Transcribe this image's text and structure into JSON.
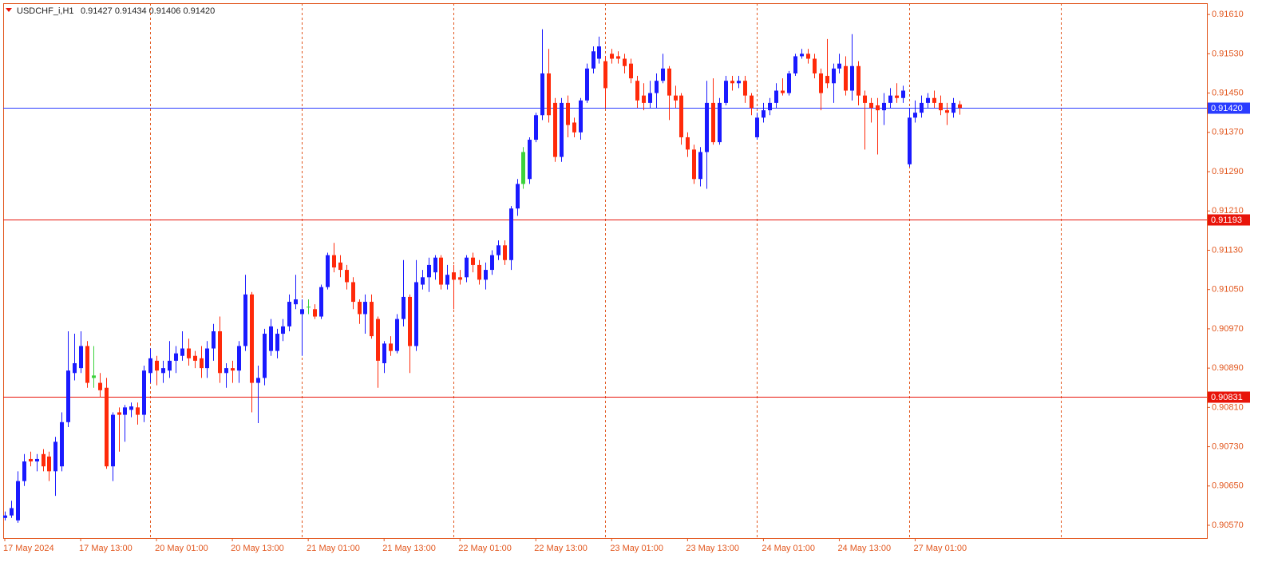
{
  "chart_data": {
    "type": "candlestick",
    "title": "USDCHF_i,H1",
    "subtitle": "0.91427 0.91434 0.91406 0.91420",
    "up_color": "#1a1aff",
    "down_color": "#ff2a0a",
    "special_color": "#3cd23c",
    "special_indices": [
      14,
      48,
      82
    ],
    "categories": [
      "17 May 2024",
      null,
      null,
      null,
      null,
      null,
      null,
      null,
      null,
      null,
      null,
      null,
      "17 May 13:00",
      null,
      null,
      null,
      null,
      null,
      null,
      null,
      null,
      null,
      null,
      null,
      "20 May 01:00",
      null,
      null,
      null,
      null,
      null,
      null,
      null,
      null,
      null,
      null,
      null,
      "20 May 13:00",
      null,
      null,
      null,
      null,
      null,
      null,
      null,
      null,
      null,
      null,
      null,
      "21 May 01:00",
      null,
      null,
      null,
      null,
      null,
      null,
      null,
      null,
      null,
      null,
      null,
      "21 May 13:00",
      null,
      null,
      null,
      null,
      null,
      null,
      null,
      null,
      null,
      null,
      null,
      "22 May 01:00",
      null,
      null,
      null,
      null,
      null,
      null,
      null,
      null,
      null,
      null,
      null,
      "22 May 13:00",
      null,
      null,
      null,
      null,
      null,
      null,
      null,
      null,
      null,
      null,
      null,
      "23 May 01:00",
      null,
      null,
      null,
      null,
      null,
      null,
      null,
      null,
      null,
      null,
      null,
      "23 May 13:00",
      null,
      null,
      null,
      null,
      null,
      null,
      null,
      null,
      null,
      null,
      null,
      "24 May 01:00",
      null,
      null,
      null,
      null,
      null,
      null,
      null,
      null,
      null,
      null,
      null,
      "24 May 13:00",
      null,
      null,
      null,
      null,
      null,
      null,
      null,
      null,
      null,
      null,
      null,
      "27 May 01:00",
      null,
      null,
      null,
      null,
      null,
      null,
      null
    ],
    "open": [
      0.90585,
      0.9059,
      0.9058,
      0.9066,
      0.90705,
      0.907,
      0.90715,
      0.9071,
      0.9068,
      0.9069,
      0.9078,
      0.9088,
      0.9089,
      0.90935,
      0.9087,
      0.9086,
      0.9085,
      0.9069,
      0.908,
      0.90795,
      0.90805,
      0.9081,
      0.90795,
      0.9088,
      0.90905,
      0.9088,
      0.90885,
      0.90905,
      0.90915,
      0.9093,
      0.90915,
      0.9091,
      0.9089,
      0.9093,
      0.90965,
      0.9088,
      0.9089,
      0.90885,
      0.90935,
      0.9104,
      0.9086,
      0.9087,
      0.90925,
      0.90925,
      0.9096,
      0.90975,
      0.9102,
      0.91,
      0.91015,
      0.9101,
      0.90995,
      0.91055,
      0.9112,
      0.91105,
      0.9109,
      0.91065,
      0.91025,
      0.91,
      0.91025,
      0.9099,
      0.909,
      0.9094,
      0.90925,
      0.9099,
      0.91035,
      0.90935,
      0.9106,
      0.91075,
      0.91085,
      0.91115,
      0.9106,
      0.91085,
      0.91075,
      0.91075,
      0.91115,
      0.911,
      0.9107,
      0.9109,
      0.9112,
      0.9114,
      0.9111,
      0.91215,
      0.91265,
      0.91275,
      0.91355,
      0.91405,
      0.9149,
      0.9143,
      0.9132,
      0.9143,
      0.9139,
      0.9137,
      0.91435,
      0.915,
      0.9152,
      0.91515,
      0.9153,
      0.91525,
      0.9152,
      0.9151,
      0.91475,
      0.91445,
      0.9143,
      0.9145,
      0.91475,
      0.915,
      0.91445,
      0.91445,
      0.9136,
      0.91335,
      0.91275,
      0.9133,
      0.9143,
      0.9135,
      0.9143,
      0.91475,
      0.9147,
      0.91475,
      0.91445,
      0.9136,
      0.914,
      0.91415,
      0.9143,
      0.91455,
      0.9145,
      0.9149,
      0.91525,
      0.9153,
      0.9152,
      0.9149,
      0.91485,
      0.9147,
      0.915,
      0.91505,
      0.91455,
      0.91505,
      0.91445,
      0.9143,
      0.91425,
      0.91415,
      0.9143,
      0.91445,
      0.9144,
      0.91305,
      0.914,
      0.9141,
      0.9143,
      0.9144,
      0.9143,
      0.91415,
      0.9141,
      0.91427
    ],
    "high": [
      0.90598,
      0.9062,
      0.9068,
      0.90715,
      0.9072,
      0.90715,
      0.90725,
      0.9072,
      0.9075,
      0.908,
      0.90965,
      0.9096,
      0.90965,
      0.90945,
      0.90935,
      0.9088,
      0.9087,
      0.908,
      0.9081,
      0.90815,
      0.9082,
      0.9082,
      0.90895,
      0.9093,
      0.90915,
      0.90905,
      0.90945,
      0.90935,
      0.90965,
      0.9095,
      0.90925,
      0.90935,
      0.90945,
      0.9098,
      0.90995,
      0.909,
      0.90905,
      0.90945,
      0.9108,
      0.91045,
      0.90895,
      0.9097,
      0.9099,
      0.9097,
      0.9099,
      0.9104,
      0.9108,
      0.9103,
      0.9103,
      0.9102,
      0.9106,
      0.91125,
      0.91145,
      0.9112,
      0.911,
      0.91075,
      0.9103,
      0.9104,
      0.9104,
      0.90995,
      0.90945,
      0.90955,
      0.91,
      0.9111,
      0.9104,
      0.9111,
      0.9109,
      0.91115,
      0.9112,
      0.9112,
      0.911,
      0.911,
      0.9109,
      0.9112,
      0.91125,
      0.9111,
      0.91105,
      0.9113,
      0.9115,
      0.9115,
      0.9122,
      0.91275,
      0.9134,
      0.9136,
      0.9141,
      0.9158,
      0.9154,
      0.9144,
      0.9144,
      0.91445,
      0.914,
      0.9144,
      0.9151,
      0.91545,
      0.91565,
      0.91525,
      0.9154,
      0.91535,
      0.9153,
      0.9152,
      0.91485,
      0.9147,
      0.91475,
      0.9149,
      0.9153,
      0.91505,
      0.91465,
      0.9145,
      0.9137,
      0.91345,
      0.9134,
      0.91475,
      0.9148,
      0.9144,
      0.91485,
      0.91485,
      0.91485,
      0.91485,
      0.9145,
      0.9141,
      0.9143,
      0.9144,
      0.9147,
      0.9148,
      0.91495,
      0.9153,
      0.9154,
      0.9154,
      0.9153,
      0.915,
      0.9156,
      0.9151,
      0.9153,
      0.91525,
      0.9157,
      0.91515,
      0.91455,
      0.9144,
      0.9144,
      0.9145,
      0.9146,
      0.9147,
      0.91465,
      0.9142,
      0.91435,
      0.91445,
      0.9145,
      0.91455,
      0.91445,
      0.9143,
      0.9144,
      0.91434
    ],
    "low": [
      0.9058,
      0.90585,
      0.90575,
      0.9065,
      0.9069,
      0.9068,
      0.9068,
      0.9066,
      0.9063,
      0.9068,
      0.9077,
      0.90865,
      0.9088,
      0.9085,
      0.9085,
      0.9083,
      0.90685,
      0.9066,
      0.9072,
      0.9074,
      0.9079,
      0.90775,
      0.9078,
      0.9086,
      0.90855,
      0.9086,
      0.9087,
      0.9088,
      0.90905,
      0.90895,
      0.9089,
      0.9087,
      0.9087,
      0.90905,
      0.9086,
      0.9085,
      0.9086,
      0.9086,
      0.90925,
      0.908,
      0.90778,
      0.90855,
      0.90915,
      0.9091,
      0.90945,
      0.90965,
      0.9101,
      0.90915,
      0.91,
      0.9099,
      0.9099,
      0.9105,
      0.91085,
      0.91075,
      0.9105,
      0.9101,
      0.9098,
      0.9096,
      0.9095,
      0.9085,
      0.9088,
      0.90915,
      0.9092,
      0.90975,
      0.9088,
      0.90925,
      0.9105,
      0.91045,
      0.9107,
      0.9105,
      0.9105,
      0.9101,
      0.9106,
      0.91065,
      0.91085,
      0.9106,
      0.9105,
      0.9108,
      0.9111,
      0.911,
      0.9109,
      0.912,
      0.91255,
      0.91265,
      0.9135,
      0.91395,
      0.9139,
      0.9131,
      0.9131,
      0.9136,
      0.9136,
      0.91355,
      0.9143,
      0.9149,
      0.9151,
      0.9142,
      0.9151,
      0.9151,
      0.9149,
      0.9147,
      0.9142,
      0.91415,
      0.9142,
      0.9142,
      0.9147,
      0.91395,
      0.9142,
      0.91345,
      0.9132,
      0.91265,
      0.9126,
      0.91255,
      0.91345,
      0.91345,
      0.91425,
      0.91455,
      0.9146,
      0.9143,
      0.91405,
      0.91355,
      0.9139,
      0.91405,
      0.9142,
      0.91445,
      0.91445,
      0.91485,
      0.9152,
      0.9151,
      0.9148,
      0.91415,
      0.9146,
      0.9143,
      0.9149,
      0.91445,
      0.91435,
      0.91425,
      0.91335,
      0.9139,
      0.91325,
      0.91385,
      0.9142,
      0.9143,
      0.9143,
      0.913,
      0.9139,
      0.914,
      0.9142,
      0.9142,
      0.91405,
      0.91385,
      0.914,
      0.91406
    ],
    "close": [
      0.9059,
      0.90605,
      0.9066,
      0.907,
      0.907,
      0.90705,
      0.9069,
      0.9068,
      0.9074,
      0.9078,
      0.90885,
      0.909,
      0.90935,
      0.9086,
      0.90875,
      0.90845,
      0.9069,
      0.90795,
      0.90795,
      0.9081,
      0.90812,
      0.90795,
      0.90885,
      0.9091,
      0.90885,
      0.9089,
      0.90905,
      0.9092,
      0.9093,
      0.9091,
      0.90905,
      0.9089,
      0.9093,
      0.90965,
      0.9088,
      0.9089,
      0.90885,
      0.90935,
      0.9104,
      0.9086,
      0.9087,
      0.9096,
      0.90975,
      0.9096,
      0.90975,
      0.91025,
      0.9103,
      0.9101,
      0.91015,
      0.90995,
      0.91055,
      0.9112,
      0.91095,
      0.9109,
      0.91065,
      0.91025,
      0.91,
      0.91025,
      0.90955,
      0.90905,
      0.9094,
      0.90925,
      0.9099,
      0.91035,
      0.90935,
      0.91065,
      0.91075,
      0.911,
      0.91115,
      0.9106,
      0.9108,
      0.9107,
      0.9107,
      0.91115,
      0.911,
      0.9107,
      0.9109,
      0.9112,
      0.9114,
      0.9111,
      0.91215,
      0.91265,
      0.9133,
      0.91355,
      0.91405,
      0.9149,
      0.91405,
      0.9132,
      0.9143,
      0.91385,
      0.9137,
      0.91435,
      0.915,
      0.91535,
      0.91545,
      0.9146,
      0.9152,
      0.9152,
      0.91505,
      0.9148,
      0.91435,
      0.9143,
      0.9145,
      0.91475,
      0.915,
      0.91445,
      0.91435,
      0.9136,
      0.91335,
      0.91275,
      0.9133,
      0.9143,
      0.9135,
      0.9143,
      0.91475,
      0.9147,
      0.91475,
      0.91445,
      0.9142,
      0.914,
      0.91415,
      0.9143,
      0.91455,
      0.9145,
      0.9149,
      0.91525,
      0.9153,
      0.9152,
      0.9149,
      0.9145,
      0.9147,
      0.915,
      0.9151,
      0.91455,
      0.91505,
      0.91445,
      0.9143,
      0.9142,
      0.91415,
      0.9143,
      0.91445,
      0.9144,
      0.91455,
      0.914,
      0.9141,
      0.9143,
      0.9144,
      0.9143,
      0.91415,
      0.9141,
      0.9143,
      0.9142
    ],
    "ylim": [
      0.90544,
      0.91633
    ],
    "yticks": [
      {
        "value": 0.9057,
        "label": "0.90570"
      },
      {
        "value": 0.9065,
        "label": "0.90650"
      },
      {
        "value": 0.9073,
        "label": "0.90730"
      },
      {
        "value": 0.9081,
        "label": "0.90810"
      },
      {
        "value": 0.9089,
        "label": "0.90890"
      },
      {
        "value": 0.9097,
        "label": "0.90970"
      },
      {
        "value": 0.9105,
        "label": "0.91050"
      },
      {
        "value": 0.9113,
        "label": "0.91130"
      },
      {
        "value": 0.9121,
        "label": "0.91210"
      },
      {
        "value": 0.9129,
        "label": "0.91290"
      },
      {
        "value": 0.9137,
        "label": "0.91370"
      },
      {
        "value": 0.9145,
        "label": "0.91450"
      },
      {
        "value": 0.9153,
        "label": "0.91530"
      },
      {
        "value": 0.9161,
        "label": "0.91610"
      }
    ],
    "hlines": [
      {
        "value": 0.9142,
        "label": "0.91420",
        "color": "#2a3cff"
      },
      {
        "value": 0.91193,
        "label": "0.91193",
        "color": "#e8140a"
      },
      {
        "value": 0.90831,
        "label": "0.90831",
        "color": "#e8140a"
      }
    ]
  }
}
